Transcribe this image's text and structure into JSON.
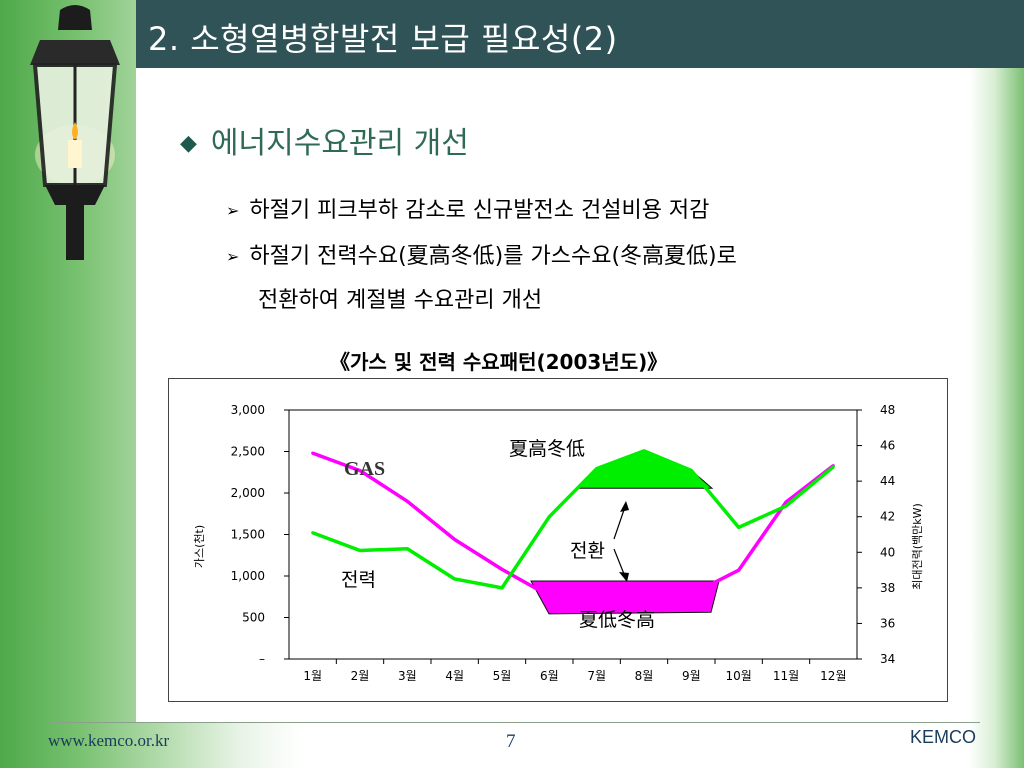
{
  "slide": {
    "title": "2. 소형열병합발전 보급 필요성(2)",
    "bullet": "에너지수요관리 개선",
    "sub_items": [
      "하절기 피크부하 감소로 신규발전소 건설비용 저감",
      "하절기 전력수요(夏高冬低)를 가스수요(冬高夏低)로",
      "전환하여 계절별 수요관리 개선"
    ],
    "chart_caption": "《가스 및 전력 수요패턴(2003년도)》"
  },
  "footer": {
    "url": "www.kemco.or.kr",
    "page": "7",
    "brand": "KEMCO"
  },
  "colors": {
    "title_bar": "#2f5356",
    "gas_line": "#ff00ff",
    "power_line": "#00ee00"
  },
  "chart_data": {
    "type": "line",
    "categories": [
      "1월",
      "2월",
      "3월",
      "4월",
      "5월",
      "6월",
      "7월",
      "8월",
      "9월",
      "10월",
      "11월",
      "12월"
    ],
    "y_left": {
      "label": "가스(천t)",
      "ticks": [
        "3,000",
        "2,500",
        "2,000",
        "1,500",
        "1,000",
        "500",
        "–"
      ],
      "range": [
        0,
        3000
      ]
    },
    "y_right": {
      "label": "최대전력(백만kW)",
      "ticks": [
        "48",
        "46",
        "44",
        "42",
        "40",
        "38",
        "36",
        "34"
      ],
      "range": [
        34,
        48
      ]
    },
    "series": [
      {
        "name": "GAS",
        "axis": "left",
        "color": "#ff00ff",
        "values": [
          2480,
          2270,
          1900,
          1440,
          1080,
          760,
          760,
          760,
          780,
          1070,
          1890,
          2330
        ]
      },
      {
        "name": "전력",
        "axis": "right",
        "color": "#00ee00",
        "values": [
          41.1,
          40.1,
          40.2,
          38.5,
          38.0,
          42.0,
          44.7,
          45.7,
          44.6,
          41.4,
          42.6,
          44.8
        ]
      }
    ],
    "annotations": {
      "summer_peak": "夏高冬低",
      "summer_low": "夏低冬高",
      "shift": "전환"
    },
    "grid": false,
    "legend": "inline labels"
  }
}
